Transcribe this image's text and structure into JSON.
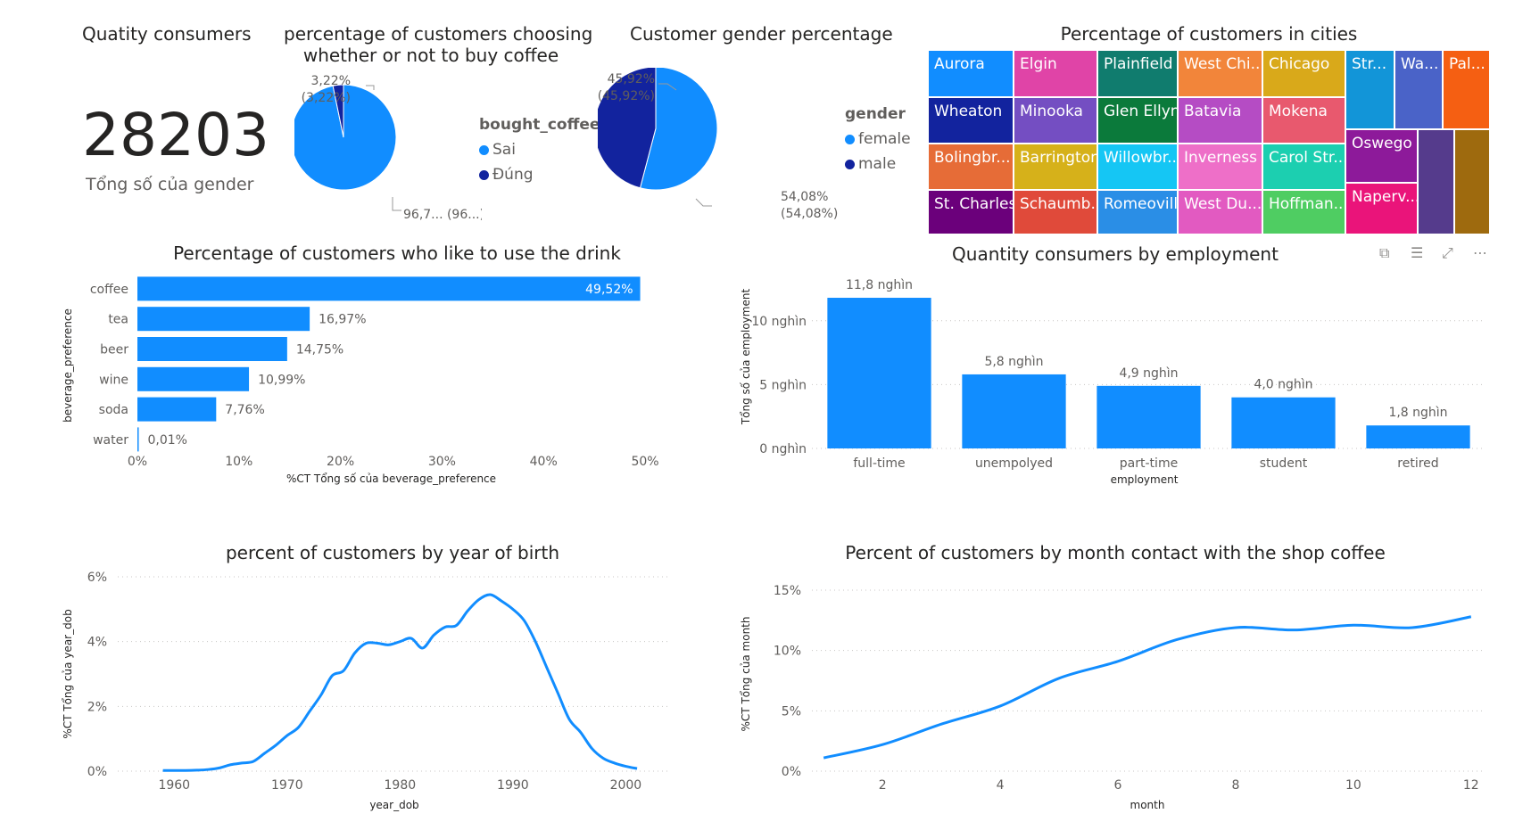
{
  "card": {
    "title": "Quatity consumers",
    "value": "28203",
    "subtitle": "Tổng số của gender"
  },
  "pie_coffee": {
    "title_line1": "percentage of customers choosing",
    "title_line2": "whether or not to buy coffee",
    "legend_title": "bought_coffee",
    "label_small_1": "3,22%",
    "label_small_2": "(3,22%)",
    "label_big": "96,7... (96...)"
  },
  "pie_gender": {
    "title": "Customer gender percentage",
    "legend_title": "gender",
    "label_male_1": "45,92%",
    "label_male_2": "(45,92%)",
    "label_female_1": "54,08%",
    "label_female_2": "(54,08%)"
  },
  "treemap": {
    "title": "Percentage of customers in cities",
    "cells": [
      {
        "label": "Aurora",
        "color": "#118dff"
      },
      {
        "label": "Elgin",
        "color": "#e044a7"
      },
      {
        "label": "Plainfield",
        "color": "#107c6e"
      },
      {
        "label": "West Chi...",
        "color": "#f2853a"
      },
      {
        "label": "Chicago",
        "color": "#d9a91a"
      },
      {
        "label": "Str...",
        "color": "#1295d8"
      },
      {
        "label": "Wa...",
        "color": "#4a63c8"
      },
      {
        "label": "Pal...",
        "color": "#f55f12"
      },
      {
        "label": "Wheaton",
        "color": "#12239e"
      },
      {
        "label": "Minooka",
        "color": "#744ec2"
      },
      {
        "label": "Glen Ellyn",
        "color": "#0b7a3b"
      },
      {
        "label": "Batavia",
        "color": "#b54cc4"
      },
      {
        "label": "Mokena",
        "color": "#e8596e"
      },
      {
        "label": "Bolingbr...",
        "color": "#e66c37"
      },
      {
        "label": "Barrington",
        "color": "#d6b11a"
      },
      {
        "label": "Willowbr...",
        "color": "#15c6f4"
      },
      {
        "label": "Inverness",
        "color": "#ee6fc8"
      },
      {
        "label": "Carol Str...",
        "color": "#1ccfb0"
      },
      {
        "label": "Oswego",
        "color": "#8d1a9a"
      },
      {
        "label": "St. Charles",
        "color": "#6b007b"
      },
      {
        "label": "Schaumb...",
        "color": "#e04a3a"
      },
      {
        "label": "Romeoville",
        "color": "#2a8ee6"
      },
      {
        "label": "West Du...",
        "color": "#e25ac1"
      },
      {
        "label": "Hoffman...",
        "color": "#4fcd62"
      },
      {
        "label": "Naperv...",
        "color": "#ea147a"
      },
      {
        "label": "",
        "color": "#553b8c"
      },
      {
        "label": "",
        "color": "#9e6a0e"
      }
    ]
  },
  "toolbar_icons": [
    "copy-icon",
    "filter-icon",
    "focus-mode-icon",
    "more-options-icon"
  ],
  "chart_data": [
    {
      "type": "pie",
      "title": "percentage of customers choosing whether or not to buy coffee",
      "legend_title": "bought_coffee",
      "legend_position": "right",
      "slices": [
        {
          "name": "Sai",
          "value": 96.78,
          "color": "#118dff"
        },
        {
          "name": "Đúng",
          "value": 3.22,
          "color": "#12239e"
        }
      ]
    },
    {
      "type": "pie",
      "title": "Customer gender percentage",
      "legend_title": "gender",
      "legend_position": "right",
      "slices": [
        {
          "name": "female",
          "value": 54.08,
          "color": "#118dff"
        },
        {
          "name": "male",
          "value": 45.92,
          "color": "#12239e"
        }
      ]
    },
    {
      "type": "bar",
      "orientation": "horizontal",
      "title": "Percentage of customers who like to use the drink",
      "xlabel": "%CT Tổng số của beverage_preference",
      "ylabel": "beverage_preference",
      "categories": [
        "coffee",
        "tea",
        "beer",
        "wine",
        "soda",
        "water"
      ],
      "values": [
        49.52,
        16.97,
        14.75,
        10.99,
        7.76,
        0.01
      ],
      "value_labels": [
        "49,52%",
        "16,97%",
        "14,75%",
        "10,99%",
        "7,76%",
        "0,01%"
      ],
      "xlim": [
        0,
        50
      ],
      "xticks": [
        0,
        10,
        20,
        30,
        40,
        50
      ],
      "xtick_labels": [
        "0%",
        "10%",
        "20%",
        "30%",
        "40%",
        "50%"
      ],
      "color": "#118dff"
    },
    {
      "type": "bar",
      "title": "Quantity consumers by employment",
      "xlabel": "employment",
      "ylabel": "Tổng số của employment",
      "categories": [
        "full-time",
        "unempolyed",
        "part-time",
        "student",
        "retired"
      ],
      "values": [
        11800,
        5800,
        4900,
        4000,
        1800
      ],
      "value_labels": [
        "11,8 nghìn",
        "5,8 nghìn",
        "4,9 nghìn",
        "4,0 nghìn",
        "1,8 nghìn"
      ],
      "ylim": [
        0,
        12500
      ],
      "yticks": [
        0,
        5000,
        10000
      ],
      "ytick_labels": [
        "0 nghìn",
        "5 nghìn",
        "10 nghìn"
      ],
      "grid": true,
      "color": "#118dff"
    },
    {
      "type": "line",
      "title": "percent of customers by year of birth",
      "xlabel": "year_dob",
      "ylabel": "%CT Tổng của year_dob",
      "x": [
        1959,
        1960,
        1961,
        1962,
        1963,
        1964,
        1965,
        1966,
        1967,
        1968,
        1969,
        1970,
        1971,
        1972,
        1973,
        1974,
        1975,
        1976,
        1977,
        1978,
        1979,
        1980,
        1981,
        1982,
        1983,
        1984,
        1985,
        1986,
        1987,
        1988,
        1989,
        1990,
        1991,
        1992,
        1993,
        1994,
        1995,
        1996,
        1997,
        1998,
        1999,
        2000,
        2001
      ],
      "y": [
        0.02,
        0.02,
        0.02,
        0.03,
        0.05,
        0.1,
        0.2,
        0.25,
        0.3,
        0.55,
        0.8,
        1.1,
        1.35,
        1.85,
        2.35,
        2.95,
        3.1,
        3.65,
        3.95,
        3.95,
        3.9,
        4.0,
        4.1,
        3.8,
        4.2,
        4.45,
        4.5,
        4.95,
        5.3,
        5.45,
        5.25,
        5.0,
        4.65,
        4.0,
        3.2,
        2.4,
        1.6,
        1.2,
        0.7,
        0.4,
        0.25,
        0.15,
        0.08
      ],
      "xlim": [
        1955,
        2004
      ],
      "ylim": [
        0,
        6
      ],
      "xticks": [
        1960,
        1970,
        1980,
        1990,
        2000
      ],
      "yticks": [
        0,
        2,
        4,
        6
      ],
      "ytick_labels": [
        "0%",
        "2%",
        "4%",
        "6%"
      ],
      "grid": true,
      "color": "#118dff"
    },
    {
      "type": "line",
      "title": "Percent of customers by month contact with the shop coffee",
      "xlabel": "month",
      "ylabel": "%CT Tổng của month",
      "x": [
        1,
        2,
        3,
        4,
        5,
        6,
        7,
        8,
        9,
        10,
        11,
        12
      ],
      "y": [
        1.1,
        2.2,
        3.9,
        5.4,
        7.7,
        9.1,
        10.9,
        11.9,
        11.7,
        12.1,
        11.9,
        12.8
      ],
      "xlim": [
        0.8,
        12.2
      ],
      "ylim": [
        0,
        15
      ],
      "xticks": [
        2,
        4,
        6,
        8,
        10,
        12
      ],
      "yticks": [
        0,
        5,
        10,
        15
      ],
      "ytick_labels": [
        "0%",
        "5%",
        "10%",
        "15%"
      ],
      "grid": true,
      "color": "#118dff"
    }
  ]
}
